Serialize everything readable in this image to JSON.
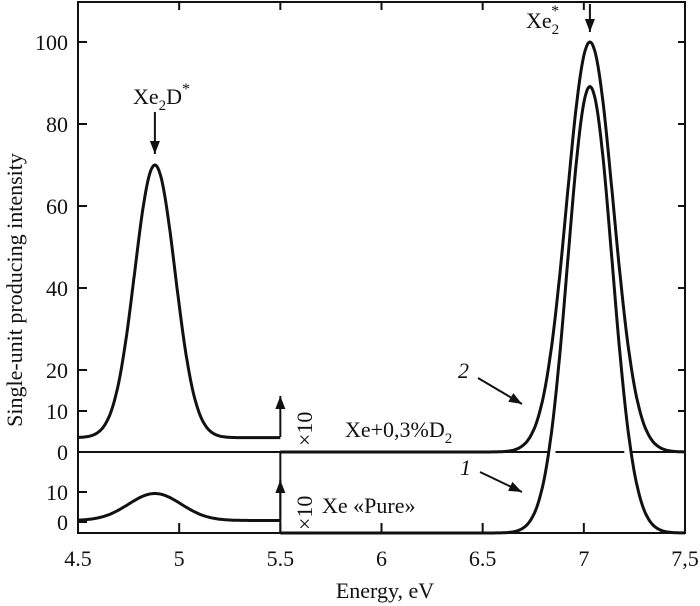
{
  "chart_data": {
    "type": "line",
    "xlabel": "Energy, eV",
    "ylabel": "Single-unit producing intensity",
    "xlim": [
      4.5,
      7.5
    ],
    "x_ticks": [
      "4.5",
      "5",
      "5.5",
      "6",
      "6.5",
      "7",
      "7,5"
    ],
    "x_tick_values": [
      4.5,
      5,
      5.5,
      6,
      6.5,
      7,
      7.5
    ],
    "upper_panel": {
      "y_ticks": [
        "0",
        "10",
        "20",
        "40",
        "60",
        "80",
        "100"
      ],
      "y_tick_values": [
        0,
        10,
        20,
        40,
        60,
        80,
        100
      ]
    },
    "lower_panel": {
      "y_ticks": [
        "0",
        "10"
      ],
      "y_tick_values": [
        0,
        10
      ]
    },
    "grid": false,
    "series": [
      {
        "name": "2",
        "sample": "Xe+0,3%D2",
        "panel": "upper",
        "peaks": [
          {
            "label": "Xe2D*",
            "center": 4.88,
            "height": 70,
            "baseline": 3.5,
            "scale_note": "×10",
            "range": [
              4.5,
              5.5
            ]
          },
          {
            "label": "Xe2*",
            "center": 7.03,
            "height": 100,
            "baseline": 0,
            "range": [
              5.5,
              7.5
            ]
          }
        ]
      },
      {
        "name": "1",
        "sample": "Xe «Pure»",
        "panel": "lower",
        "peaks": [
          {
            "center": 4.88,
            "height": 9.5,
            "baseline": 0.5,
            "scale_note": "×10",
            "range": [
              4.5,
              5.5
            ]
          },
          {
            "center": 7.03,
            "height": 90,
            "baseline": 0,
            "range": [
              5.5,
              7.5
            ]
          }
        ]
      }
    ],
    "annotations": {
      "xe2d": {
        "main": "Xe",
        "sub": "2",
        "rest": "D",
        "sup": "*"
      },
      "xe2": {
        "main": "Xe",
        "sub": "2",
        "sup": "*"
      },
      "x10": "×10",
      "mix": {
        "main": "Xe+0,3%D",
        "sub": "2"
      },
      "pure": "Xe «Pure»",
      "curve1": "1",
      "curve2": "2"
    }
  }
}
